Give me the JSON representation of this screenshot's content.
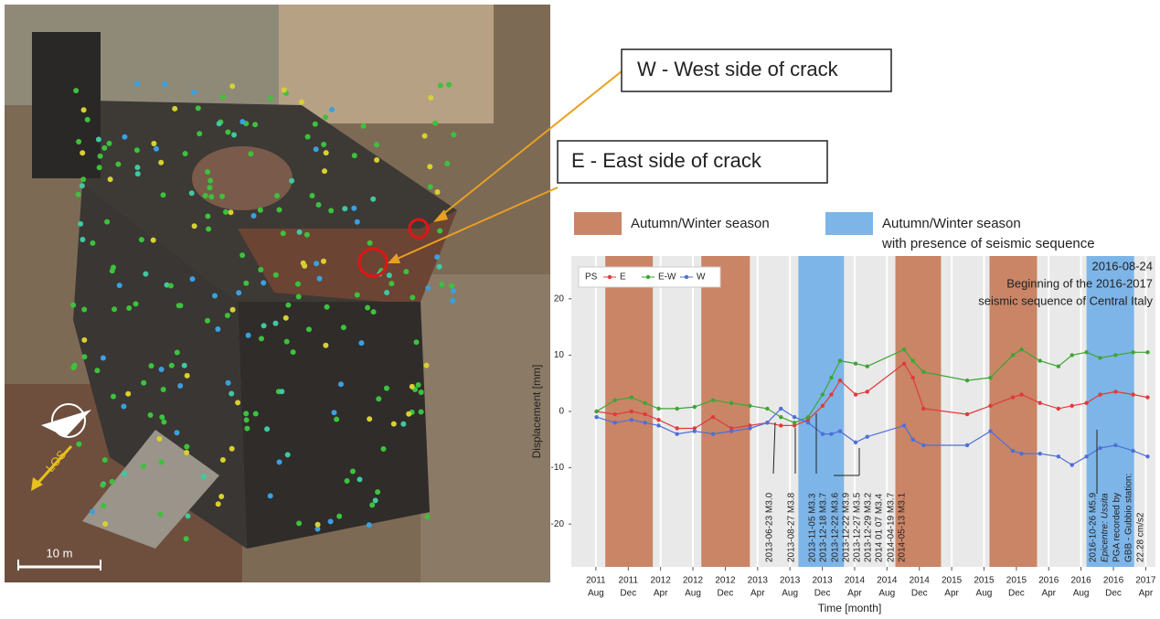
{
  "photo": {
    "callouts": [
      "W - West side of crack",
      "E - East side of crack"
    ],
    "scale": "10 m",
    "los": "LOS"
  },
  "chart_data": {
    "type": "line",
    "ylabel": "Displacement [mm]",
    "xlabel": "Time [month]",
    "ylim": [
      -27.6,
      27.6
    ],
    "yticks": [
      -20,
      -10,
      0,
      10,
      20
    ],
    "xlim": [
      2011.33,
      2017.35
    ],
    "xticks": [
      {
        "value": 2011.583,
        "label": [
          "2011",
          "Aug"
        ]
      },
      {
        "value": 2011.917,
        "label": [
          "2011",
          "Dec"
        ]
      },
      {
        "value": 2012.25,
        "label": [
          "2012",
          "Apr"
        ]
      },
      {
        "value": 2012.583,
        "label": [
          "2012",
          "Aug"
        ]
      },
      {
        "value": 2012.917,
        "label": [
          "2012",
          "Dec"
        ]
      },
      {
        "value": 2013.25,
        "label": [
          "2013",
          "Apr"
        ]
      },
      {
        "value": 2013.583,
        "label": [
          "2013",
          "Aug"
        ]
      },
      {
        "value": 2013.917,
        "label": [
          "2013",
          "Dec"
        ]
      },
      {
        "value": 2014.25,
        "label": [
          "2014",
          "Apr"
        ]
      },
      {
        "value": 2014.583,
        "label": [
          "2014",
          "Aug"
        ]
      },
      {
        "value": 2014.917,
        "label": [
          "2014",
          "Dec"
        ]
      },
      {
        "value": 2015.25,
        "label": [
          "2015",
          "Apr"
        ]
      },
      {
        "value": 2015.583,
        "label": [
          "2015",
          "Aug"
        ]
      },
      {
        "value": 2015.917,
        "label": [
          "2015",
          "Dec"
        ]
      },
      {
        "value": 2016.25,
        "label": [
          "2016",
          "Apr"
        ]
      },
      {
        "value": 2016.583,
        "label": [
          "2016",
          "Aug"
        ]
      },
      {
        "value": 2016.917,
        "label": [
          "2016",
          "Dec"
        ]
      },
      {
        "value": 2017.25,
        "label": [
          "2017",
          "Apr"
        ]
      }
    ],
    "season_types": [
      {
        "label": [
          "Autumn/Winter season"
        ],
        "color": "#c98566"
      },
      {
        "label": [
          "Autumn/Winter season",
          "with presence of seismic sequence"
        ],
        "color": "#7db5e8"
      }
    ],
    "bands": [
      {
        "start": 2011.68,
        "end": 2012.17,
        "type": 0
      },
      {
        "start": 2012.67,
        "end": 2013.17,
        "type": 0
      },
      {
        "start": 2013.67,
        "end": 2014.14,
        "type": 1
      },
      {
        "start": 2014.67,
        "end": 2015.14,
        "type": 0
      },
      {
        "start": 2015.64,
        "end": 2016.13,
        "type": 0
      },
      {
        "start": 2016.64,
        "end": 2017.13,
        "type": 1
      }
    ],
    "legend_title": "PS",
    "series": [
      {
        "name": "E",
        "color": "#e03b3b",
        "x": [
          2011.59,
          2011.78,
          2011.95,
          2012.09,
          2012.23,
          2012.42,
          2012.6,
          2012.79,
          2012.98,
          2013.17,
          2013.35,
          2013.49,
          2013.63,
          2013.77,
          2013.92,
          2014.01,
          2014.1,
          2014.26,
          2014.38,
          2014.76,
          2014.85,
          2014.96,
          2015.41,
          2015.65,
          2015.88,
          2015.97,
          2016.16,
          2016.35,
          2016.49,
          2016.64,
          2016.78,
          2016.94,
          2017.12,
          2017.27
        ],
        "values": [
          0,
          -0.5,
          0,
          -0.5,
          -1.5,
          -3,
          -3,
          -1,
          -3,
          -2.5,
          -2,
          -2.5,
          -2.5,
          -1.5,
          1,
          3,
          5.5,
          3,
          3.5,
          8.5,
          6,
          0.5,
          -0.5,
          1,
          2.5,
          3,
          1.5,
          0.5,
          1,
          1.5,
          3,
          3.5,
          3,
          2.5
        ]
      },
      {
        "name": "E-W",
        "color": "#3fa535",
        "x": [
          2011.59,
          2011.78,
          2011.95,
          2012.09,
          2012.23,
          2012.42,
          2012.6,
          2012.79,
          2012.98,
          2013.17,
          2013.35,
          2013.49,
          2013.63,
          2013.77,
          2013.92,
          2014.01,
          2014.1,
          2014.26,
          2014.38,
          2014.76,
          2014.85,
          2014.96,
          2015.41,
          2015.65,
          2015.88,
          2015.97,
          2016.16,
          2016.35,
          2016.49,
          2016.64,
          2016.78,
          2016.94,
          2017.12,
          2017.27
        ],
        "values": [
          0,
          2,
          2.5,
          1.5,
          0.5,
          0.5,
          0.8,
          2,
          1.5,
          1,
          0.5,
          -1,
          -2,
          -1,
          3,
          6,
          9,
          8.5,
          8,
          11,
          9,
          7,
          5.5,
          6,
          10,
          11,
          9,
          8,
          10,
          10.5,
          9.5,
          10,
          10.5,
          10.5
        ]
      },
      {
        "name": "W",
        "color": "#4f6fd8",
        "x": [
          2011.59,
          2011.78,
          2011.95,
          2012.09,
          2012.23,
          2012.42,
          2012.6,
          2012.79,
          2012.98,
          2013.17,
          2013.35,
          2013.49,
          2013.63,
          2013.77,
          2013.92,
          2014.01,
          2014.1,
          2014.26,
          2014.38,
          2014.76,
          2014.85,
          2014.96,
          2015.41,
          2015.65,
          2015.88,
          2015.97,
          2016.16,
          2016.35,
          2016.49,
          2016.64,
          2016.78,
          2016.94,
          2017.12,
          2017.27
        ],
        "values": [
          -1,
          -2,
          -1.5,
          -2,
          -2.5,
          -4,
          -3.5,
          -4,
          -3.5,
          -3,
          -2,
          0.5,
          -1,
          -2,
          -4,
          -4,
          -3.5,
          -5.5,
          -4.5,
          -2.5,
          -5,
          -6,
          -6,
          -3.5,
          -7,
          -7.5,
          -7.5,
          -8,
          -9.5,
          -8,
          -6.5,
          -6,
          -7,
          -8
        ]
      }
    ],
    "events": [
      "2013-06-23 M3.0",
      "2013-08-27 M3.8",
      "2013-11-05 M3.3",
      "2013-12-18 M3.7",
      "2013-12-22 M3.6",
      "2013-12-22 M3.9",
      "2013-12-27 M3.5",
      "2013-12-29 M3.2",
      "2014 01 07 M3.4",
      "2014-04-19 M3.7",
      "2014-05-13 M3.1"
    ],
    "main_event": [
      "2016-10-26 M5.9",
      "Epicentre: Ussita",
      "PGA recorded by",
      "GBB - Gubbio station:",
      "22.28 cm/s2"
    ],
    "annotation": [
      "2016-08-24",
      "Beginning of the 2016-2017",
      "seismic sequence of Central Italy"
    ]
  }
}
